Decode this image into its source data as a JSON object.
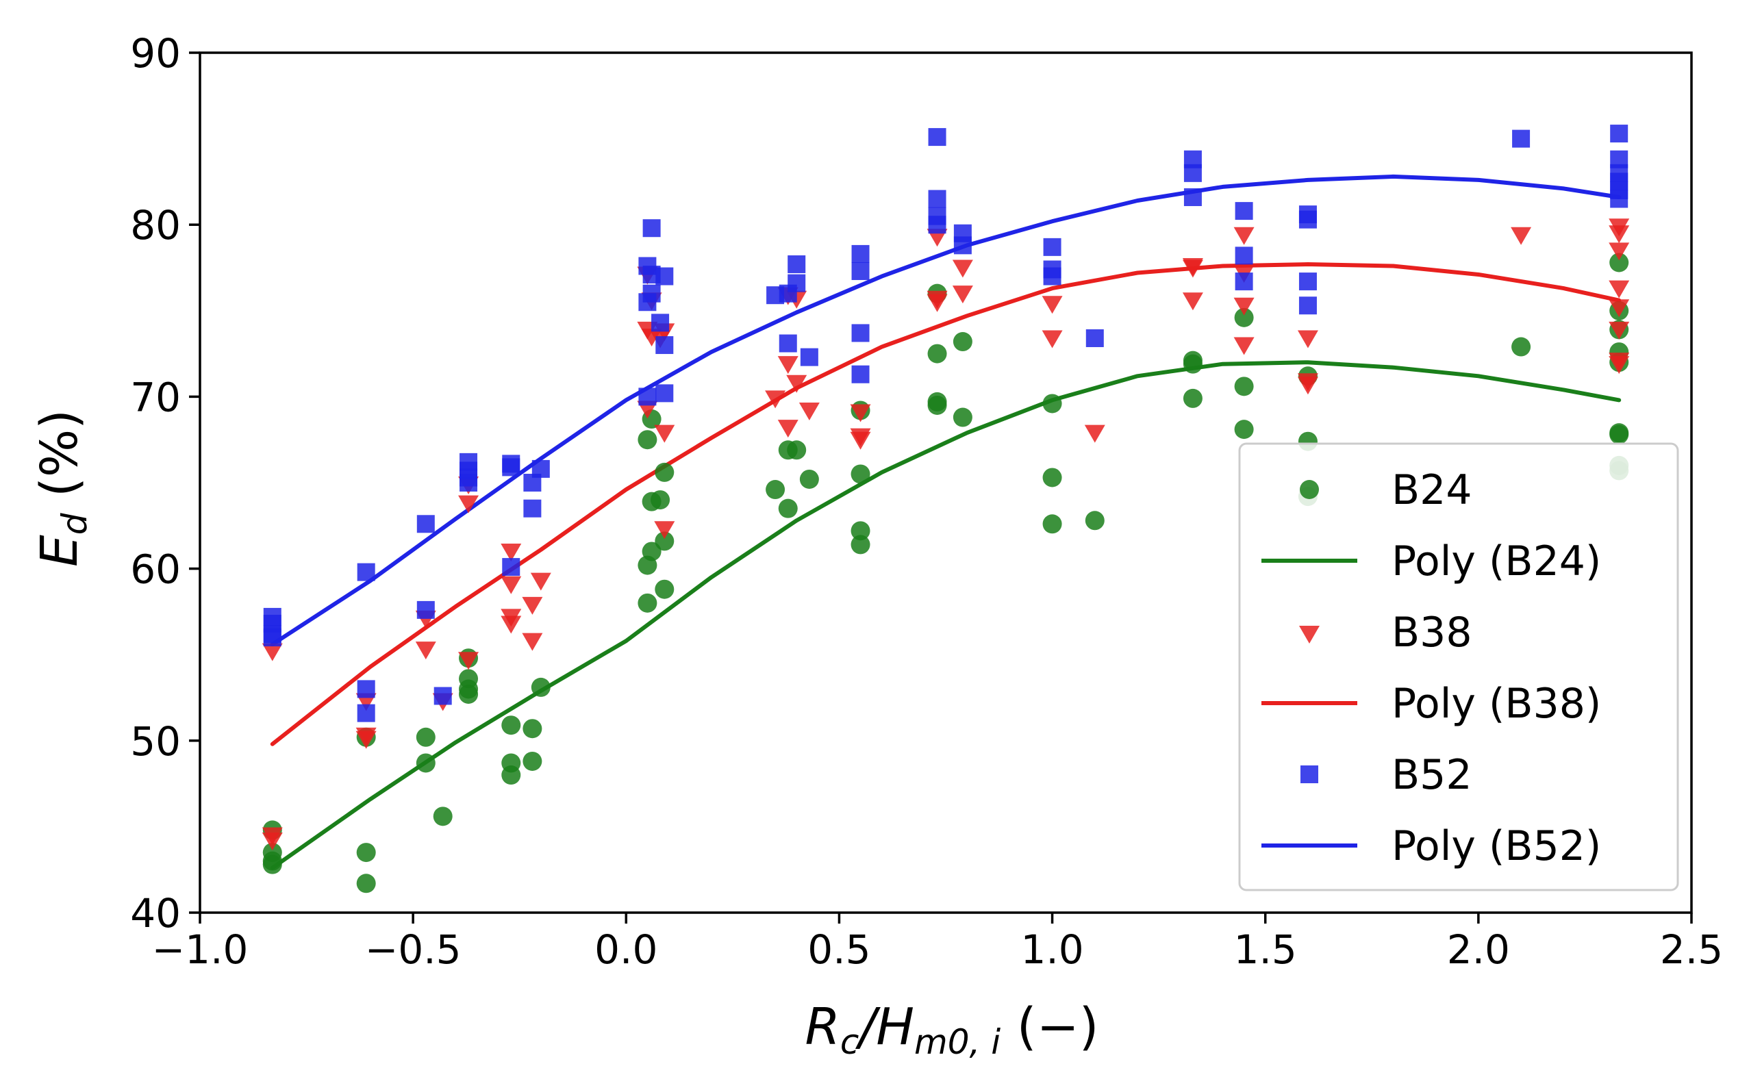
{
  "chart_data": {
    "type": "scatter",
    "title": "",
    "xlabel": {
      "base": "R",
      "sub1": "c",
      "mid": "/H",
      "sub2": "m0, i",
      "units": " (−)"
    },
    "ylabel": {
      "base": "E",
      "sub": "d",
      "units": " (%)"
    },
    "xlim": [
      -1.0,
      2.5
    ],
    "ylim": [
      40,
      90
    ],
    "xticks": [
      -1.0,
      -0.5,
      0.0,
      0.5,
      1.0,
      1.5,
      2.0,
      2.5
    ],
    "xtick_labels": [
      "−1.0",
      "−0.5",
      "0.0",
      "0.5",
      "1.0",
      "1.5",
      "2.0",
      "2.5"
    ],
    "yticks": [
      40,
      50,
      60,
      70,
      80,
      90
    ],
    "ytick_labels": [
      "40",
      "50",
      "60",
      "70",
      "80",
      "90"
    ],
    "grid": false,
    "legend_position": "bottom-right",
    "legend": [
      {
        "label": "B24",
        "kind": "marker",
        "series": "B24"
      },
      {
        "label": "Poly (B24)",
        "kind": "line",
        "series": "B24"
      },
      {
        "label": "B38",
        "kind": "marker",
        "series": "B38"
      },
      {
        "label": "Poly (B38)",
        "kind": "line",
        "series": "B38"
      },
      {
        "label": "B52",
        "kind": "marker",
        "series": "B52"
      },
      {
        "label": "Poly (B52)",
        "kind": "line",
        "series": "B52"
      }
    ],
    "series": [
      {
        "name": "B24",
        "marker": "circle",
        "color": "#1a7f1a",
        "points": [
          [
            -0.83,
            44.8
          ],
          [
            -0.83,
            43.5
          ],
          [
            -0.83,
            43.0
          ],
          [
            -0.83,
            42.8
          ],
          [
            -0.61,
            50.2
          ],
          [
            -0.61,
            43.5
          ],
          [
            -0.61,
            41.7
          ],
          [
            -0.47,
            50.2
          ],
          [
            -0.47,
            48.7
          ],
          [
            -0.43,
            45.6
          ],
          [
            -0.37,
            54.8
          ],
          [
            -0.37,
            53.6
          ],
          [
            -0.37,
            53.0
          ],
          [
            -0.37,
            52.7
          ],
          [
            -0.27,
            50.9
          ],
          [
            -0.27,
            48.7
          ],
          [
            -0.27,
            48.0
          ],
          [
            -0.22,
            50.7
          ],
          [
            -0.22,
            48.8
          ],
          [
            -0.2,
            53.1
          ],
          [
            0.05,
            67.5
          ],
          [
            0.05,
            60.2
          ],
          [
            0.05,
            58.0
          ],
          [
            0.06,
            68.7
          ],
          [
            0.06,
            63.9
          ],
          [
            0.06,
            61.0
          ],
          [
            0.08,
            64.0
          ],
          [
            0.09,
            65.6
          ],
          [
            0.09,
            61.6
          ],
          [
            0.09,
            58.8
          ],
          [
            0.35,
            64.6
          ],
          [
            0.38,
            66.9
          ],
          [
            0.38,
            63.5
          ],
          [
            0.4,
            66.9
          ],
          [
            0.43,
            65.2
          ],
          [
            0.55,
            69.2
          ],
          [
            0.55,
            65.5
          ],
          [
            0.55,
            62.2
          ],
          [
            0.55,
            61.4
          ],
          [
            0.73,
            76.0
          ],
          [
            0.73,
            72.5
          ],
          [
            0.73,
            69.7
          ],
          [
            0.73,
            69.5
          ],
          [
            0.79,
            73.2
          ],
          [
            0.79,
            68.8
          ],
          [
            1.0,
            69.6
          ],
          [
            1.0,
            65.3
          ],
          [
            1.0,
            62.6
          ],
          [
            1.1,
            62.8
          ],
          [
            1.33,
            72.1
          ],
          [
            1.33,
            71.9
          ],
          [
            1.33,
            69.9
          ],
          [
            1.45,
            74.6
          ],
          [
            1.45,
            70.6
          ],
          [
            1.45,
            68.1
          ],
          [
            1.6,
            71.2
          ],
          [
            1.6,
            67.4
          ],
          [
            1.6,
            64.2
          ],
          [
            2.1,
            72.9
          ],
          [
            2.33,
            77.8
          ],
          [
            2.33,
            75.0
          ],
          [
            2.33,
            73.9
          ],
          [
            2.33,
            72.6
          ],
          [
            2.33,
            72.0
          ],
          [
            2.33,
            67.9
          ],
          [
            2.33,
            67.8
          ],
          [
            2.33,
            66.0
          ],
          [
            2.33,
            65.7
          ]
        ],
        "poly_curve": {
          "x": [
            -0.83,
            -0.6,
            -0.4,
            -0.2,
            0.0,
            0.2,
            0.4,
            0.6,
            0.8,
            1.0,
            1.2,
            1.4,
            1.6,
            1.8,
            2.0,
            2.2,
            2.33
          ],
          "y": [
            42.6,
            46.6,
            49.9,
            52.9,
            55.8,
            59.5,
            62.8,
            65.6,
            67.9,
            69.8,
            71.2,
            71.9,
            72.0,
            71.7,
            71.2,
            70.4,
            69.8
          ]
        }
      },
      {
        "name": "B38",
        "marker": "triangle-down",
        "color": "#e8201e",
        "points": [
          [
            -0.83,
            55.3
          ],
          [
            -0.83,
            44.6
          ],
          [
            -0.83,
            44.3
          ],
          [
            -0.61,
            52.4
          ],
          [
            -0.61,
            50.4
          ],
          [
            -0.61,
            50.2
          ],
          [
            -0.47,
            57.2
          ],
          [
            -0.47,
            55.4
          ],
          [
            -0.43,
            52.4
          ],
          [
            -0.37,
            65.0
          ],
          [
            -0.37,
            63.9
          ],
          [
            -0.37,
            54.8
          ],
          [
            -0.27,
            61.1
          ],
          [
            -0.27,
            59.2
          ],
          [
            -0.27,
            57.3
          ],
          [
            -0.27,
            56.9
          ],
          [
            -0.22,
            58.0
          ],
          [
            -0.22,
            55.9
          ],
          [
            -0.2,
            59.4
          ],
          [
            0.05,
            77.2
          ],
          [
            0.05,
            74.0
          ],
          [
            0.05,
            69.4
          ],
          [
            0.06,
            75.7
          ],
          [
            0.06,
            73.6
          ],
          [
            0.08,
            73.5
          ],
          [
            0.09,
            73.9
          ],
          [
            0.09,
            68.0
          ],
          [
            0.09,
            62.4
          ],
          [
            0.35,
            70.0
          ],
          [
            0.38,
            76.0
          ],
          [
            0.38,
            72.0
          ],
          [
            0.38,
            68.3
          ],
          [
            0.4,
            75.8
          ],
          [
            0.4,
            70.9
          ],
          [
            0.43,
            69.3
          ],
          [
            0.55,
            69.2
          ],
          [
            0.55,
            67.8
          ],
          [
            0.55,
            67.6
          ],
          [
            0.73,
            79.4
          ],
          [
            0.73,
            75.8
          ],
          [
            0.73,
            75.6
          ],
          [
            0.79,
            77.6
          ],
          [
            0.79,
            76.1
          ],
          [
            1.0,
            75.5
          ],
          [
            1.0,
            73.5
          ],
          [
            1.1,
            68.0
          ],
          [
            1.33,
            77.7
          ],
          [
            1.33,
            77.6
          ],
          [
            1.33,
            75.7
          ],
          [
            1.45,
            79.5
          ],
          [
            1.45,
            77.3
          ],
          [
            1.45,
            75.4
          ],
          [
            1.45,
            73.1
          ],
          [
            1.6,
            73.5
          ],
          [
            1.6,
            71.0
          ],
          [
            1.6,
            70.8
          ],
          [
            2.1,
            79.5
          ],
          [
            2.33,
            80.0
          ],
          [
            2.33,
            79.6
          ],
          [
            2.33,
            78.6
          ],
          [
            2.33,
            76.4
          ],
          [
            2.33,
            75.3
          ],
          [
            2.33,
            74.0
          ],
          [
            2.33,
            72.2
          ],
          [
            2.33,
            72.0
          ]
        ],
        "poly_curve": {
          "x": [
            -0.83,
            -0.6,
            -0.4,
            -0.2,
            0.0,
            0.2,
            0.4,
            0.6,
            0.8,
            1.0,
            1.2,
            1.4,
            1.6,
            1.8,
            2.0,
            2.2,
            2.33
          ],
          "y": [
            49.8,
            54.3,
            57.8,
            61.1,
            64.6,
            67.6,
            70.5,
            72.9,
            74.7,
            76.3,
            77.2,
            77.6,
            77.7,
            77.6,
            77.1,
            76.3,
            75.6
          ]
        }
      },
      {
        "name": "B52",
        "marker": "square",
        "color": "#1f24e6",
        "points": [
          [
            -0.83,
            57.2
          ],
          [
            -0.83,
            56.8
          ],
          [
            -0.83,
            56.2
          ],
          [
            -0.83,
            56.0
          ],
          [
            -0.61,
            59.8
          ],
          [
            -0.61,
            53.0
          ],
          [
            -0.61,
            51.6
          ],
          [
            -0.47,
            62.6
          ],
          [
            -0.47,
            57.6
          ],
          [
            -0.43,
            52.6
          ],
          [
            -0.37,
            66.2
          ],
          [
            -0.37,
            65.7
          ],
          [
            -0.37,
            65.3
          ],
          [
            -0.37,
            65.0
          ],
          [
            -0.27,
            66.1
          ],
          [
            -0.27,
            65.9
          ],
          [
            -0.27,
            60.1
          ],
          [
            -0.22,
            65.0
          ],
          [
            -0.22,
            63.5
          ],
          [
            -0.2,
            65.8
          ],
          [
            0.05,
            77.6
          ],
          [
            0.05,
            75.5
          ],
          [
            0.05,
            70.0
          ],
          [
            0.06,
            79.8
          ],
          [
            0.06,
            77.1
          ],
          [
            0.06,
            76.0
          ],
          [
            0.08,
            74.3
          ],
          [
            0.09,
            77.0
          ],
          [
            0.09,
            73.0
          ],
          [
            0.09,
            70.2
          ],
          [
            0.35,
            75.9
          ],
          [
            0.38,
            76.0
          ],
          [
            0.38,
            73.1
          ],
          [
            0.4,
            77.7
          ],
          [
            0.4,
            76.6
          ],
          [
            0.43,
            72.3
          ],
          [
            0.55,
            78.3
          ],
          [
            0.55,
            77.3
          ],
          [
            0.55,
            73.7
          ],
          [
            0.55,
            71.3
          ],
          [
            0.73,
            85.1
          ],
          [
            0.73,
            81.5
          ],
          [
            0.73,
            80.5
          ],
          [
            0.73,
            80.0
          ],
          [
            0.79,
            79.5
          ],
          [
            0.79,
            78.8
          ],
          [
            1.0,
            78.7
          ],
          [
            1.0,
            77.4
          ],
          [
            1.0,
            77.0
          ],
          [
            1.1,
            73.4
          ],
          [
            1.33,
            83.8
          ],
          [
            1.33,
            83.0
          ],
          [
            1.33,
            81.6
          ],
          [
            1.45,
            80.8
          ],
          [
            1.45,
            78.2
          ],
          [
            1.45,
            76.7
          ],
          [
            1.6,
            80.6
          ],
          [
            1.6,
            80.3
          ],
          [
            1.6,
            76.7
          ],
          [
            1.6,
            75.3
          ],
          [
            2.1,
            85.0
          ],
          [
            2.33,
            85.3
          ],
          [
            2.33,
            83.8
          ],
          [
            2.33,
            83.0
          ],
          [
            2.33,
            82.5
          ],
          [
            2.33,
            82.0
          ],
          [
            2.33,
            81.5
          ]
        ],
        "poly_curve": {
          "x": [
            -0.83,
            -0.6,
            -0.4,
            -0.2,
            0.0,
            0.2,
            0.4,
            0.6,
            0.8,
            1.0,
            1.2,
            1.4,
            1.6,
            1.8,
            2.0,
            2.2,
            2.33
          ],
          "y": [
            55.6,
            59.3,
            62.9,
            66.4,
            69.8,
            72.6,
            74.9,
            77.0,
            78.8,
            80.2,
            81.4,
            82.2,
            82.6,
            82.8,
            82.6,
            82.1,
            81.6
          ]
        }
      }
    ]
  }
}
